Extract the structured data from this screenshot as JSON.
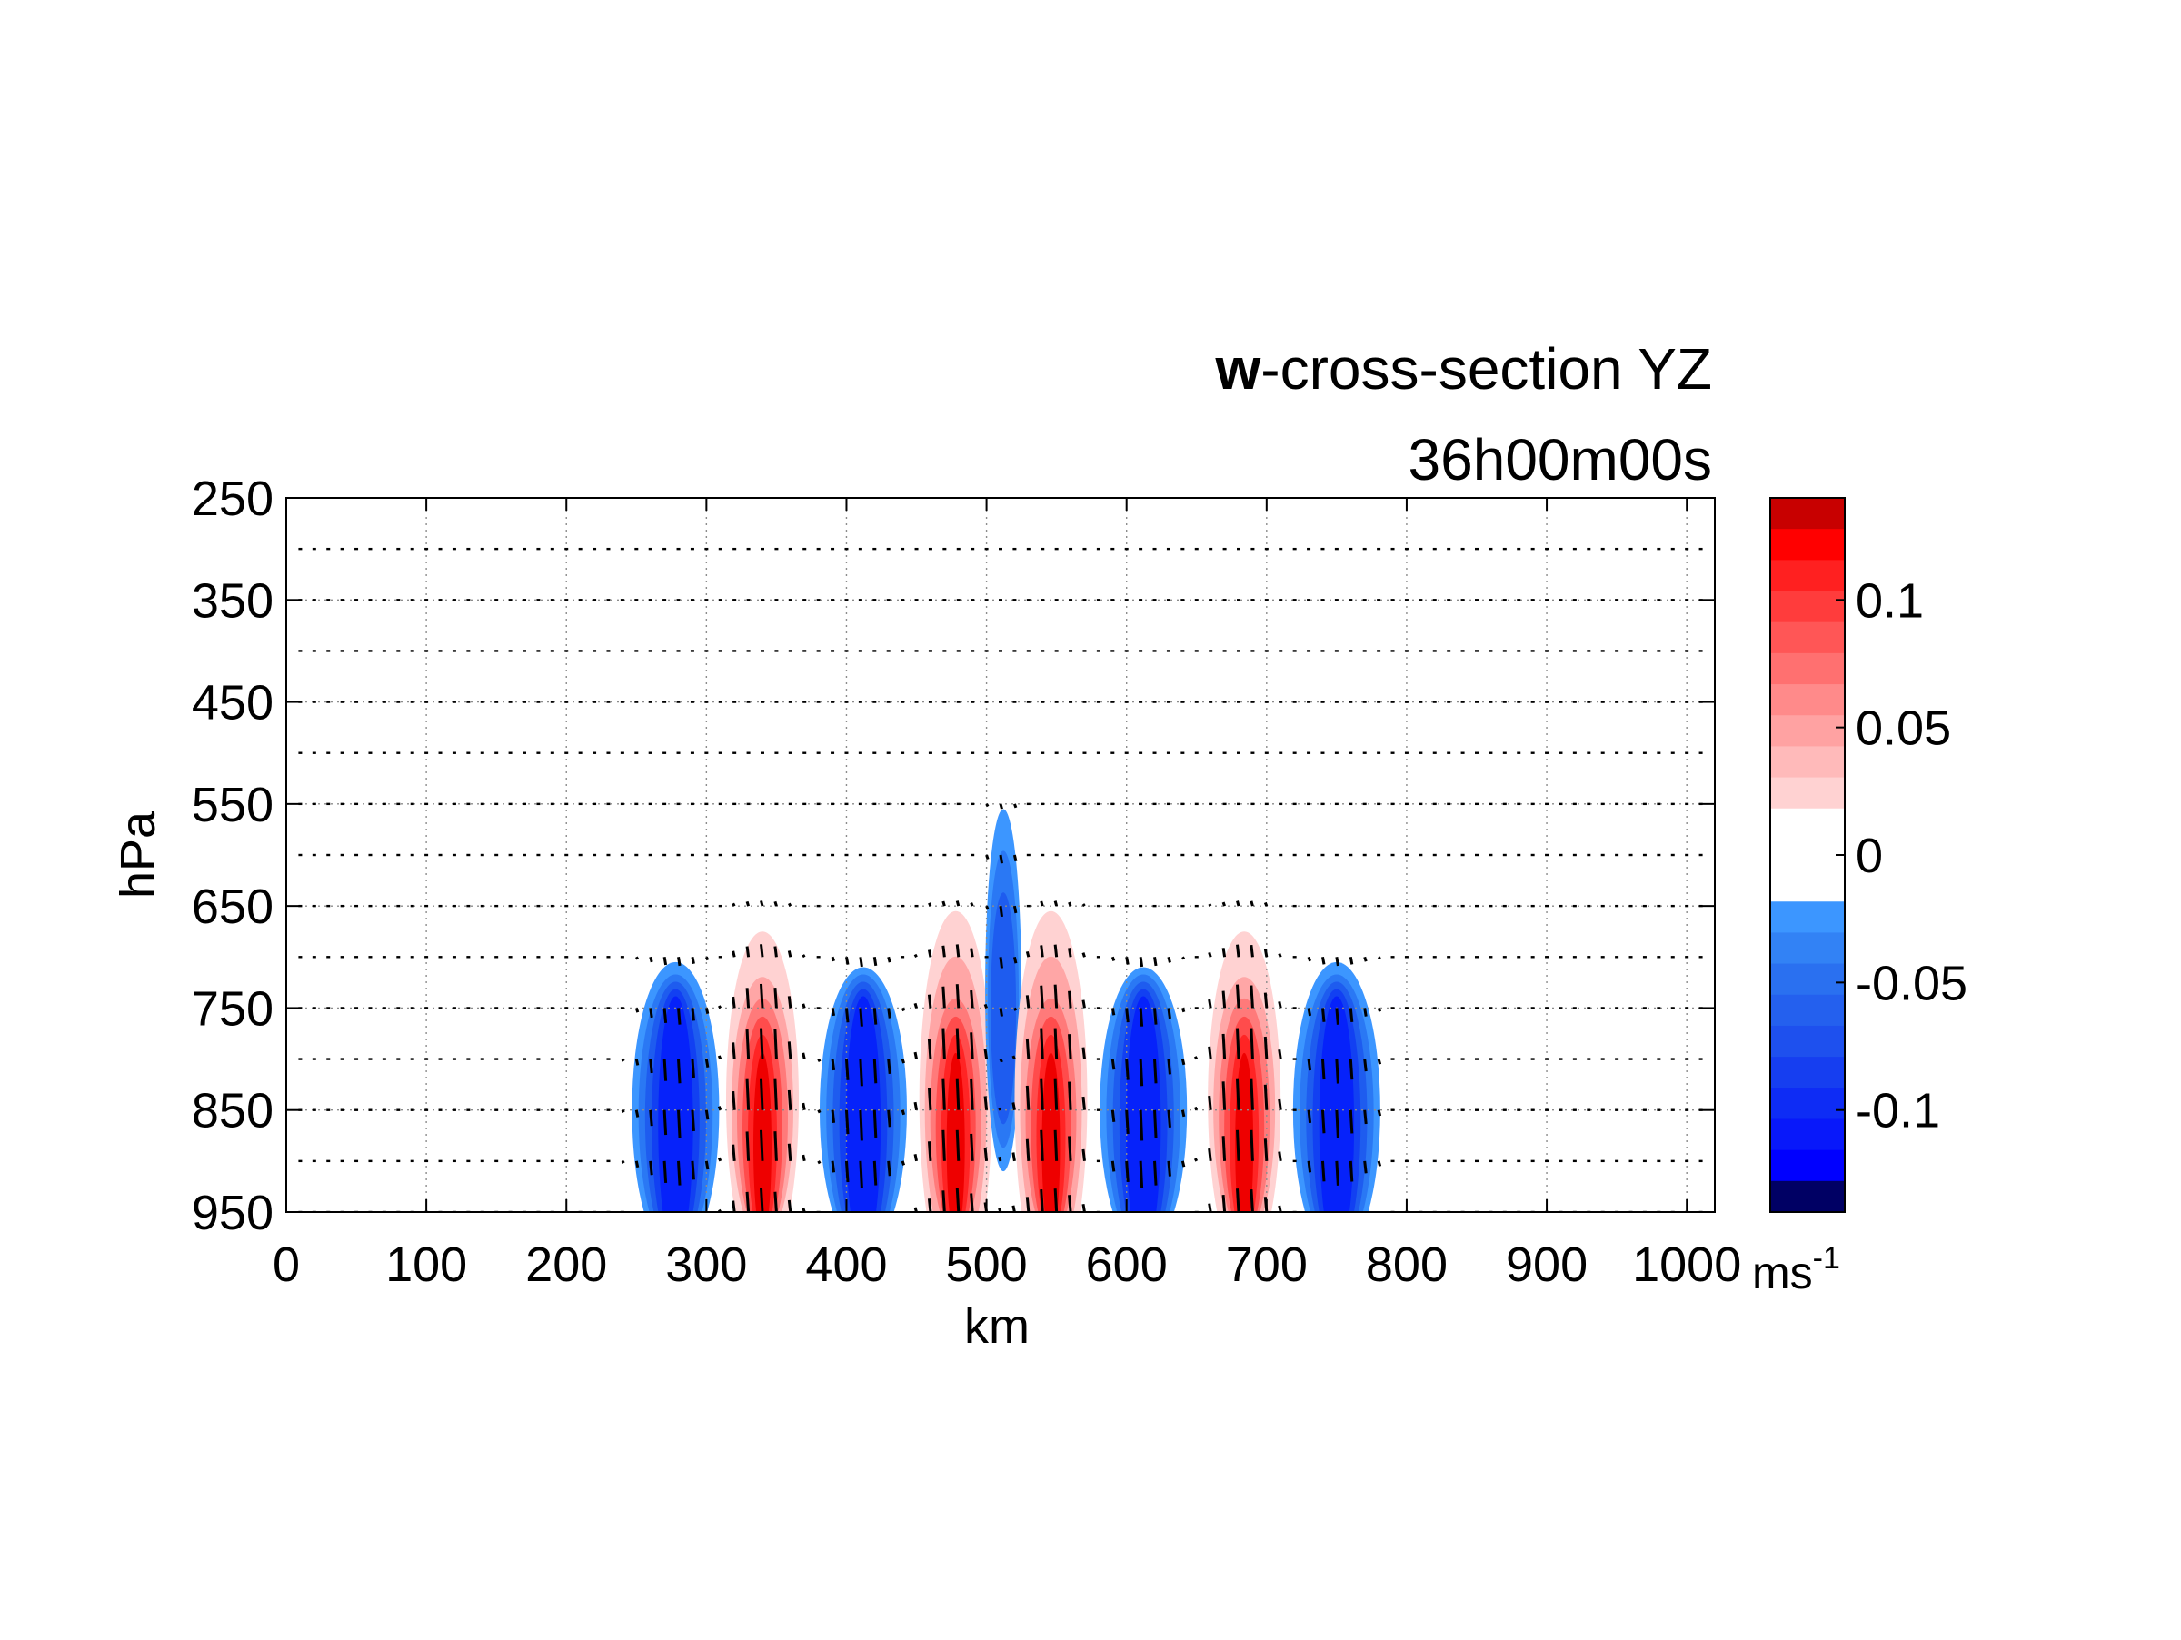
{
  "chart_data": {
    "type": "heatmap",
    "title": "w-cross-section YZ",
    "title_bold_part": "w",
    "title_rest": "-cross-section YZ",
    "subtitle": "36h00m00s",
    "xlabel": "km",
    "ylabel": "hPa",
    "xlim": [
      0,
      1020
    ],
    "ylim": [
      950,
      250
    ],
    "y_axis_inverted": true,
    "x_ticks": [
      0,
      100,
      200,
      300,
      400,
      500,
      600,
      700,
      800,
      900,
      1000
    ],
    "x_tick_labels": [
      "0",
      "100",
      "200",
      "300",
      "400",
      "500",
      "600",
      "700",
      "800",
      "900",
      "1000"
    ],
    "y_ticks": [
      250,
      350,
      450,
      550,
      650,
      750,
      850,
      950
    ],
    "y_tick_labels": [
      "250",
      "350",
      "450",
      "550",
      "650",
      "750",
      "850",
      "950"
    ],
    "grid": true,
    "overlay": "wind vectors (quiver) on pressure levels",
    "vector_levels": [
      300,
      350,
      400,
      450,
      500,
      550,
      600,
      650,
      700,
      750,
      800,
      850,
      900,
      950
    ],
    "colorbar": {
      "label_base": "ms",
      "label_exponent": "-1",
      "range": [
        -0.14,
        0.14
      ],
      "tick_values": [
        0.1,
        0.05,
        0,
        -0.05,
        -0.1
      ],
      "tick_labels": [
        "0.1",
        "0.05",
        "0",
        "-0.05",
        "-0.1"
      ],
      "colors_top_to_bottom": [
        "#c80000",
        "#ff0000",
        "#ff2020",
        "#ff3c3c",
        "#ff5656",
        "#ff7070",
        "#ff8a8a",
        "#ffa2a2",
        "#ffbaba",
        "#ffd2d2",
        "#ffffff",
        "#ffffff",
        "#ffffff",
        "#3c96ff",
        "#3282f5",
        "#2a70f0",
        "#2460ee",
        "#1e50ee",
        "#163ef0",
        "#0e2cf5",
        "#0818fa",
        "#0000ff",
        "#000064"
      ]
    },
    "features": [
      {
        "sign": "negative",
        "peak_w": -0.09,
        "y_km": 278,
        "p_top": 705,
        "p_bottom": 950
      },
      {
        "sign": "positive",
        "peak_w": 0.13,
        "y_km": 340,
        "p_top": 675,
        "p_bottom": 950
      },
      {
        "sign": "negative",
        "peak_w": -0.1,
        "y_km": 412,
        "p_top": 715,
        "p_bottom": 950
      },
      {
        "sign": "positive",
        "peak_w": 0.13,
        "y_km": 478,
        "p_top": 655,
        "p_bottom": 950
      },
      {
        "sign": "negative",
        "peak_w": -0.05,
        "y_km": 512,
        "p_top": 555,
        "p_bottom": 910
      },
      {
        "sign": "positive",
        "peak_w": 0.13,
        "y_km": 546,
        "p_top": 655,
        "p_bottom": 950
      },
      {
        "sign": "negative",
        "peak_w": -0.1,
        "y_km": 612,
        "p_top": 715,
        "p_bottom": 950
      },
      {
        "sign": "positive",
        "peak_w": 0.13,
        "y_km": 684,
        "p_top": 675,
        "p_bottom": 950
      },
      {
        "sign": "negative",
        "peak_w": -0.09,
        "y_km": 750,
        "p_top": 705,
        "p_bottom": 950
      }
    ]
  }
}
